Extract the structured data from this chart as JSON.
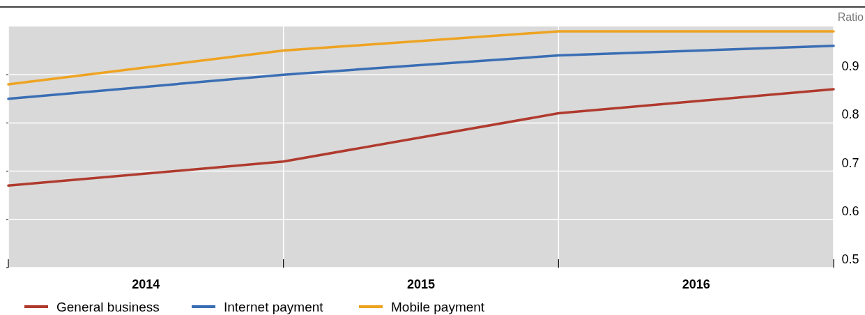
{
  "chart_data": {
    "type": "line",
    "ylabel": "Ratio",
    "x": [
      2014,
      2015,
      2016,
      2017
    ],
    "xlim": [
      2014,
      2017
    ],
    "xticks": [
      {
        "value": 2014,
        "label": null
      },
      {
        "value": 2014.5,
        "label": "2014"
      },
      {
        "value": 2015,
        "label": null
      },
      {
        "value": 2015.5,
        "label": "2015"
      },
      {
        "value": 2016,
        "label": null
      },
      {
        "value": 2016.5,
        "label": "2016"
      },
      {
        "value": 2017,
        "label": null
      }
    ],
    "ylim": [
      0.5,
      1.0
    ],
    "yticks": [
      0.5,
      0.6,
      0.7,
      0.8,
      0.9
    ],
    "grid": true,
    "legend": "bottom",
    "marker": "none",
    "line_style": "solid",
    "series": [
      {
        "name": "General business",
        "color": "#b03a2e",
        "values": [
          0.67,
          0.72,
          0.82,
          0.87
        ]
      },
      {
        "name": "Internet payment",
        "color": "#3a6eb4",
        "values": [
          0.85,
          0.9,
          0.94,
          0.96
        ]
      },
      {
        "name": "Mobile payment",
        "color": "#eea321",
        "values": [
          0.88,
          0.95,
          0.99,
          0.99
        ]
      }
    ]
  }
}
